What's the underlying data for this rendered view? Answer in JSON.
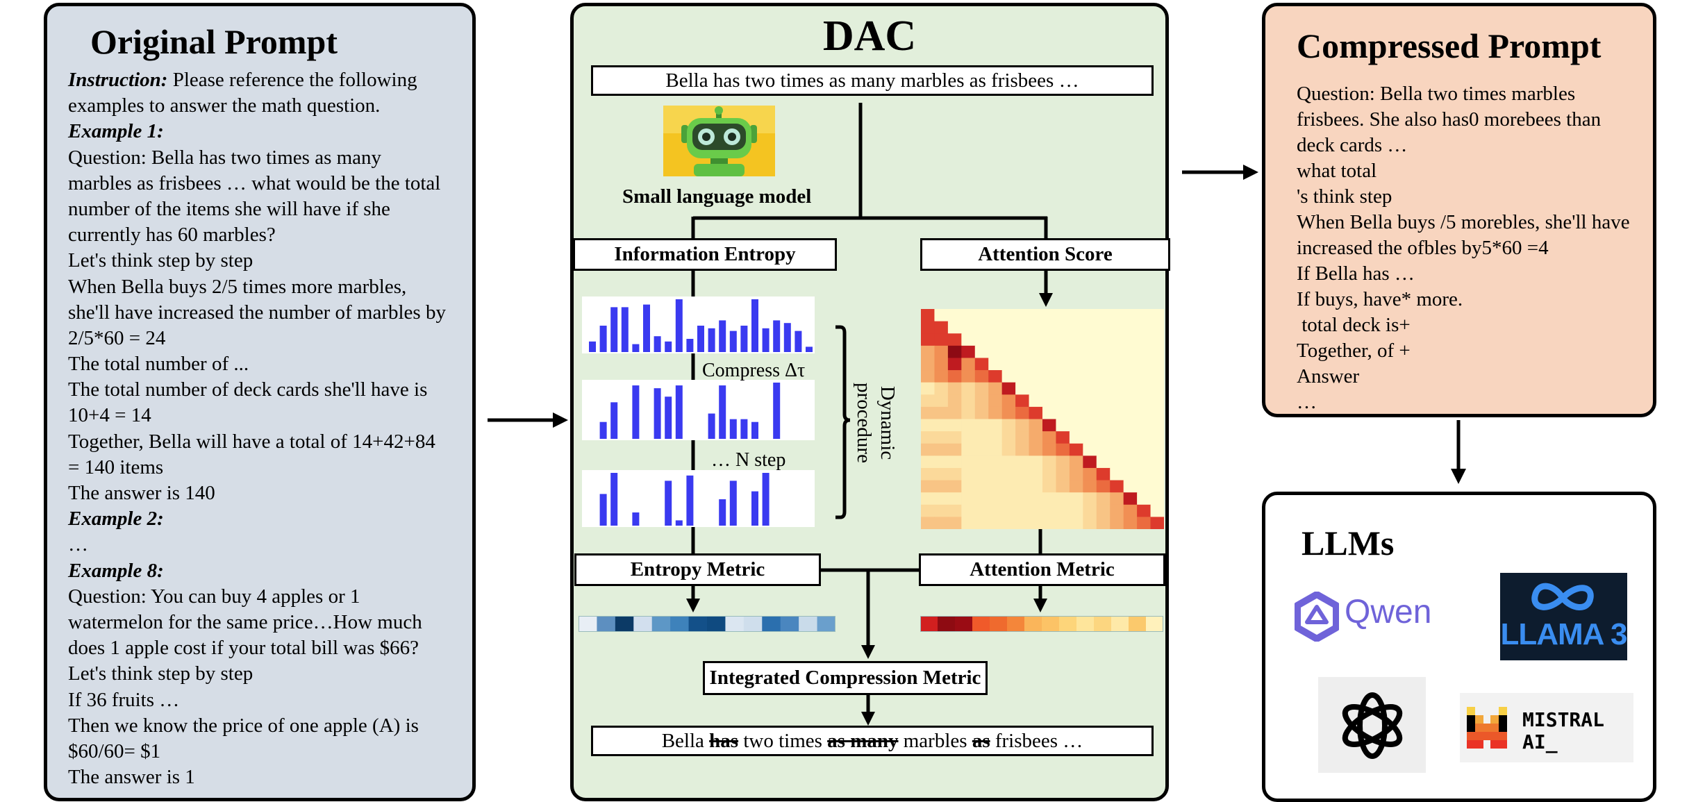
{
  "original_prompt": {
    "title": "Original Prompt",
    "instruction_label": "Instruction:",
    "instruction_rest": " Please reference the following",
    "lines": [
      "examples to answer the math question.",
      "Example 1:",
      "Question: Bella has two times as many",
      "marbles as frisbees … what would be the total",
      "number of the items she will have if she",
      "currently has 60 marbles?",
      "Let's think step by step",
      "When Bella buys 2/5 times more marbles,",
      "she'll have increased the number of marbles by",
      "2/5*60 = 24",
      "The total number of ...",
      "The total number of deck cards she'll have is",
      "10+4 = 14",
      "Together, Bella will have a total of 14+42+84",
      "= 140 items",
      "The answer is 140",
      "Example 2:",
      "…",
      "Example 8:",
      "Question: You can buy 4 apples or 1",
      "watermelon for the same price…How much",
      "does 1 apple cost if your total bill was $66?",
      "Let's think step by step",
      "If 36 fruits …",
      "Then we know the price of one apple (A) is",
      "$60/60= $1",
      "The answer is 1"
    ]
  },
  "dac": {
    "title": "DAC",
    "input_text": "Bella has two times as many marbles as frisbees …",
    "slm_label": "Small language model",
    "info_entropy": "Information Entropy",
    "attention_score": "Attention Score",
    "compress_label": "Compress Δτ",
    "nstep_label": "… N step",
    "dynamic_label_1": "Dynamic",
    "dynamic_label_2": "procedure",
    "entropy_metric": "Entropy Metric",
    "attention_metric": "Attention Metric",
    "integrated_metric": "Integrated Compression Metric",
    "output": {
      "w1": "Bella ",
      "w2": "has",
      "w3": " two times ",
      "w4": "as many",
      "w5": " marbles ",
      "w6": "as",
      "w7": " frisbees …"
    },
    "colors": {
      "bar": "#3a3af0",
      "entropy_strip": [
        "#e8eef5",
        "#5d8fc0",
        "#0c3a66",
        "#d2dfee",
        "#5d97c6",
        "#3e82bb",
        "#135089",
        "#0f4a80",
        "#dbe6f1",
        "#cfdeec",
        "#2b6fae",
        "#4a86bf",
        "#c9dbea",
        "#6a9fcc"
      ],
      "attention_strip": [
        "#d21f1f",
        "#8e0b12",
        "#9a0c14",
        "#f05a2a",
        "#ef6a2e",
        "#f4863a",
        "#fab55a",
        "#fcc366",
        "#fdd57a",
        "#fee59b",
        "#fcd680",
        "#fee9a8",
        "#fbc96c",
        "#fff1bb"
      ]
    }
  },
  "compressed_prompt": {
    "title": "Compressed Prompt",
    "lines": [
      "Question: Bella two times marbles",
      "frisbees. She also has0 morebees than",
      "deck cards …",
      "what total",
      "'s think step",
      "When Bella buys /5 morebles, she'll have",
      "increased the ofbles by5*60 =4",
      "If Bella has …",
      "If buys, have* more.",
      " total deck is+",
      "Together, of +",
      "Answer",
      "…"
    ]
  },
  "llms": {
    "title": "LLMs",
    "qwen_label": "Qwen",
    "llama_label": "LLAMA 3",
    "mistral_line1": "MISTRAL",
    "mistral_line2": "AI_",
    "colors": {
      "qwen": "#6f63d9",
      "llama_bg": "#0d1c2e",
      "llama_text": "#3a8df0"
    }
  }
}
